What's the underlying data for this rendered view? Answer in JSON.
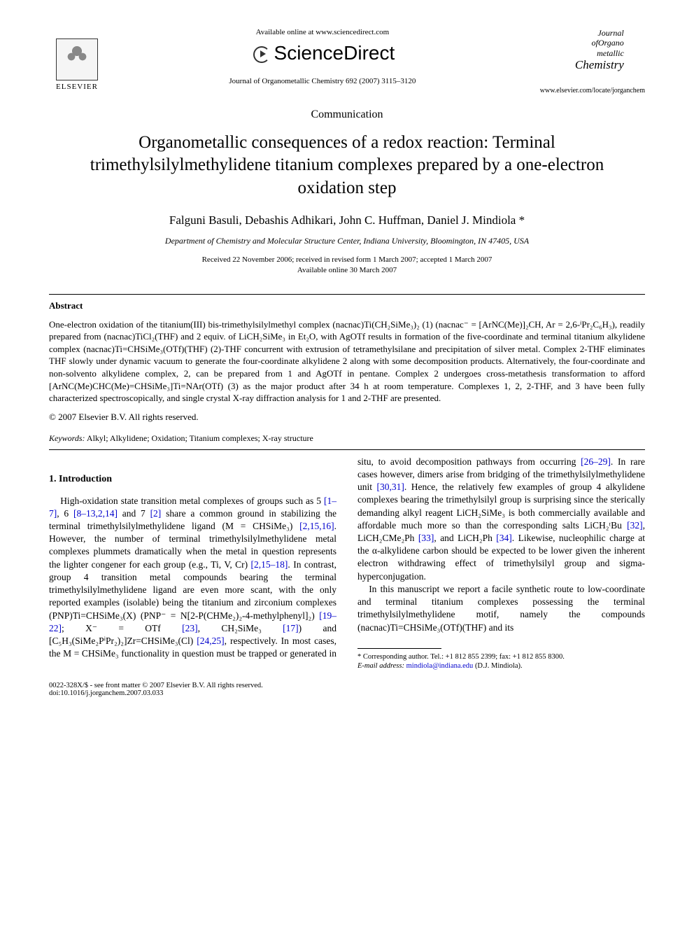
{
  "header": {
    "elsevier": "ELSEVIER",
    "avail": "Available online at www.sciencedirect.com",
    "sciencedirect": "ScienceDirect",
    "journal_ref": "Journal of Organometallic Chemistry 692 (2007) 3115–3120",
    "journal_logo_l1": "Journal",
    "journal_logo_l2": "ofOrgano",
    "journal_logo_l3": "metallic",
    "journal_logo_l4": "Chemistry",
    "url": "www.elsevier.com/locate/jorganchem"
  },
  "article": {
    "type": "Communication",
    "title": "Organometallic consequences of a redox reaction: Terminal trimethylsilylmethylidene titanium complexes prepared by a one-electron oxidation step",
    "authors": "Falguni Basuli, Debashis Adhikari, John C. Huffman, Daniel J. Mindiola *",
    "affiliation": "Department of Chemistry and Molecular Structure Center, Indiana University, Bloomington, IN 47405, USA",
    "received": "Received 22 November 2006; received in revised form 1 March 2007; accepted 1 March 2007",
    "available": "Available online 30 March 2007"
  },
  "abstract": {
    "heading": "Abstract",
    "body": "One-electron oxidation of the titanium(III) bis-trimethylsilylmethyl complex (nacnac)Ti(CH₂SiMe₃)₂ (1) (nacnac⁻ = [ArNC(Me)]₂CH, Ar = 2,6-ⁱPr₂C₆H₃), readily prepared from (nacnac)TiCl₂(THF) and 2 equiv. of LiCH₂SiMe₃ in Et₂O, with AgOTf results in formation of the five-coordinate and terminal titanium alkylidene complex (nacnac)Ti=CHSiMe₃(OTf)(THF) (2)-THF concurrent with extrusion of tetramethylsilane and precipitation of silver metal. Complex 2-THF eliminates THF slowly under dynamic vacuum to generate the four-coordinate alkylidene 2 along with some decomposition products. Alternatively, the four-coordinate and non-solvento alkylidene complex, 2, can be prepared from 1 and AgOTf in pentane. Complex 2 undergoes cross-metathesis transformation to afford [ArNC(Me)CHC(Me)=CHSiMe₃]Ti=NAr(OTf) (3) as the major product after 34 h at room temperature. Complexes 1, 2, 2-THF, and 3 have been fully characterized spectroscopically, and single crystal X-ray diffraction analysis for 1 and 2-THF are presented.",
    "copyright": "© 2007 Elsevier B.V. All rights reserved.",
    "keywords_label": "Keywords:",
    "keywords": " Alkyl; Alkylidene; Oxidation; Titanium complexes; X-ray structure"
  },
  "intro": {
    "heading": "1. Introduction",
    "p1a": "High-oxidation state transition metal complexes of groups such as 5 ",
    "r1": "[1–7]",
    "p1b": ", 6 ",
    "r2": "[8–13,2,14]",
    "p1c": " and 7 ",
    "r3": "[2]",
    "p1d": " share a common ground in stabilizing the terminal trimethylsilylmethylidene ligand (M = CHSiMe₃) ",
    "r4": "[2,15,16]",
    "p1e": ". However, the number of terminal trimethylsilylmethylidene metal complexes plummets dramatically when the metal in question represents the lighter congener for each group (e.g., Ti, V, Cr) ",
    "r5": "[2,15–18]",
    "p1f": ". In contrast, group 4 transition metal compounds bearing the terminal trimethylsilylmethylidene ligand are even more scant, with the only reported examples (isolable) being the titanium and zirconium complexes (PNP)Ti=CHSiMe₃(X) (PNP⁻ = N[2-P(CHMe₂)₂-4-methylphenyl]₂) ",
    "r6": "[19–22]",
    "p1g": "; X⁻ = OTf ",
    "r7": "[23]",
    "p1h": ", CH₂SiMe₃ ",
    "r8": "[17]",
    "p1i": ") and ",
    "p2a": "[C₅H₃(SiMe₂PⁱPr₂)₂]Zr=CHSiMe₃(Cl) ",
    "r9": "[24,25]",
    "p2b": ", respectively. In most cases, the M = CHSiMe₃ functionality in question must be trapped or generated in situ, to avoid decomposition pathways from occurring ",
    "r10": "[26–29]",
    "p2c": ". In rare cases however, dimers arise from bridging of the trimethylsilylmethylidene unit ",
    "r11": "[30,31]",
    "p2d": ". Hence, the relatively few examples of group 4 alkylidene complexes bearing the trimethylsilyl group is surprising since the sterically demanding alkyl reagent LiCH₂SiMe₃ is both commercially available and affordable much more so than the corresponding salts LiCH₂ᵗBu ",
    "r12": "[32]",
    "p2e": ", LiCH₂CMe₂Ph ",
    "r13": "[33]",
    "p2f": ", and LiCH₂Ph ",
    "r14": "[34]",
    "p2g": ". Likewise, nucleophilic charge at the α-alkylidene carbon should be expected to be lower given the inherent electron withdrawing effect of trimethylsilyl group and sigma-hyperconjugation.",
    "p3": "In this manuscript we report a facile synthetic route to low-coordinate and terminal titanium complexes possessing the terminal trimethylsilylmethylidene motif, namely the compounds (nacnac)Ti=CHSiMe₃(OTf)(THF) and its"
  },
  "footnote": {
    "corr": "* Corresponding author. Tel.: +1 812 855 2399; fax: +1 812 855 8300.",
    "email_label": "E-mail address:",
    "email": " mindiola@indiana.edu",
    "email_name": " (D.J. Mindiola)."
  },
  "footer": {
    "issn": "0022-328X/$ - see front matter © 2007 Elsevier B.V. All rights reserved.",
    "doi": "doi:10.1016/j.jorganchem.2007.03.033"
  },
  "colors": {
    "link": "#0000cc",
    "text": "#000000",
    "bg": "#ffffff"
  }
}
